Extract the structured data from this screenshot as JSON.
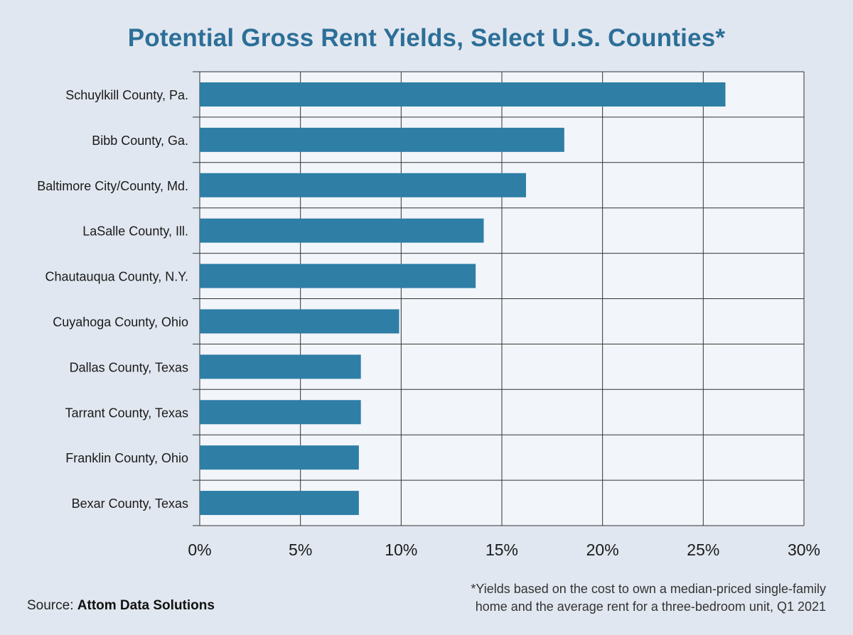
{
  "chart_data": {
    "type": "bar",
    "orientation": "horizontal",
    "title": "Potential Gross Rent Yields, Select U.S. Counties*",
    "categories": [
      "Schuylkill County, Pa.",
      "Bibb County, Ga.",
      "Baltimore City/County, Md.",
      "LaSalle County, Ill.",
      "Chautauqua County, N.Y.",
      "Cuyahoga County, Ohio",
      "Dallas County, Texas",
      "Tarrant County, Texas",
      "Franklin County, Ohio",
      "Bexar County, Texas"
    ],
    "values": [
      26.1,
      18.1,
      16.2,
      14.1,
      13.7,
      9.9,
      8.0,
      8.0,
      7.9,
      7.9
    ],
    "xlim": [
      0,
      30
    ],
    "xticks": [
      0,
      5,
      10,
      15,
      20,
      25,
      30
    ],
    "xtick_labels": [
      "0%",
      "5%",
      "10%",
      "15%",
      "20%",
      "25%",
      "30%"
    ],
    "xlabel": "",
    "ylabel": "",
    "grid": true,
    "bar_color": "#2e7ea6",
    "plot_background": "#f2f5fa",
    "grid_color": "#333333"
  },
  "source": {
    "prefix": "Source:",
    "name": "Attom Data Solutions"
  },
  "footnote": {
    "line1": "*Yields based on the cost to own a median-priced single-family",
    "line2": "home and the average rent for a three-bedroom unit, Q1 2021"
  }
}
